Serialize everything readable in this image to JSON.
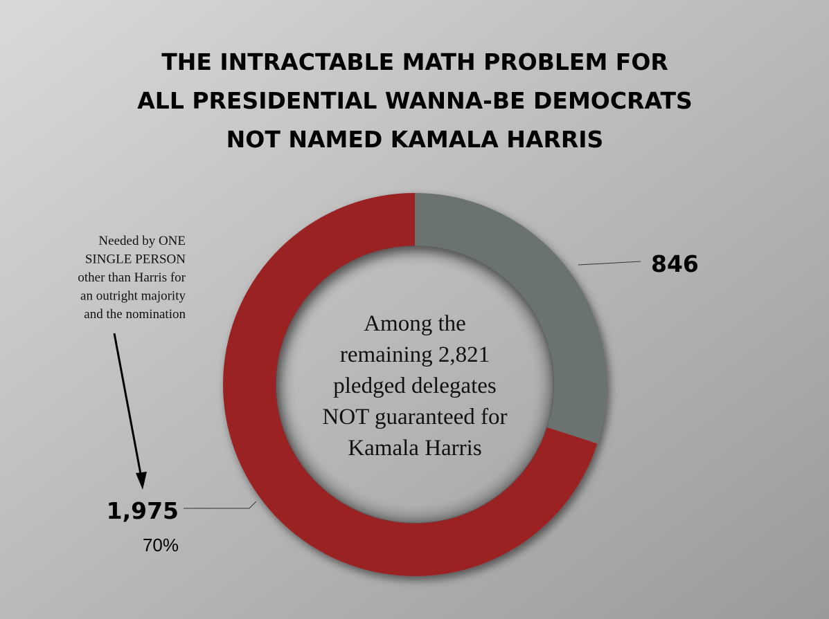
{
  "chart_data": {
    "type": "donut",
    "title": [
      "THE INTRACTABLE MATH PROBLEM FOR",
      "ALL PRESIDENTIAL WANNA-BE DEMOCRATS",
      "NOT NAMED KAMALA HARRIS"
    ],
    "values": [
      846,
      1975
    ],
    "value_labels": [
      "846",
      "1,975"
    ],
    "colors": [
      "#6b7370",
      "#9a2020"
    ],
    "center_text": [
      "Among the",
      "remaining 2,821",
      "pledged delegates",
      "NOT guaranteed for",
      "Kamala Harris"
    ],
    "annotation": [
      "Needed by ONE",
      "SINGLE PERSON",
      "other than Harris for",
      "an outright majority",
      "and the nomination"
    ],
    "share_label": "70%"
  }
}
